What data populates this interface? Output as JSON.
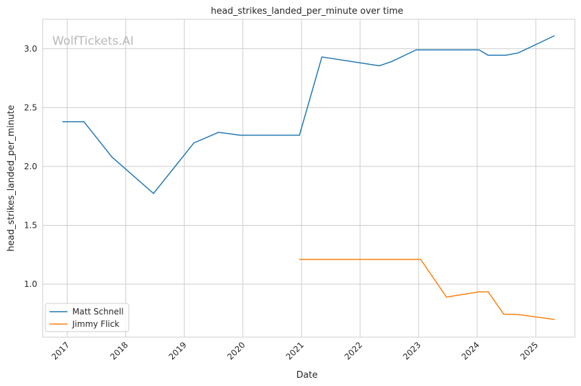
{
  "chart_data": {
    "type": "line",
    "title": "head_strikes_landed_per_minute over time",
    "xlabel": "Date",
    "ylabel": "head_strikes_landed_per_minute",
    "watermark": "WolfTickets.AI",
    "grid": true,
    "legend_position": "lower-left",
    "x_ticks": [
      "2017",
      "2018",
      "2019",
      "2020",
      "2021",
      "2022",
      "2023",
      "2024",
      "2025"
    ],
    "y_ticks": [
      "1.0",
      "1.5",
      "2.0",
      "2.5",
      "3.0"
    ],
    "xlim": [
      "2016-08-01",
      "2025-09-01"
    ],
    "ylim": [
      0.55,
      3.25
    ],
    "series": [
      {
        "name": "Matt Schnell",
        "color": "#1f77b4",
        "points": [
          [
            "2016-12-03",
            2.38
          ],
          [
            "2017-04-15",
            2.38
          ],
          [
            "2017-10-07",
            2.08
          ],
          [
            "2018-06-23",
            1.77
          ],
          [
            "2019-03-02",
            2.2
          ],
          [
            "2019-08-03",
            2.29
          ],
          [
            "2019-12-14",
            2.265
          ],
          [
            "2020-12-19",
            2.265
          ],
          [
            "2021-05-08",
            2.93
          ],
          [
            "2022-05-01",
            2.855
          ],
          [
            "2022-07-16",
            2.89
          ],
          [
            "2022-12-17",
            2.99
          ],
          [
            "2024-01-13",
            2.99
          ],
          [
            "2024-03-09",
            2.945
          ],
          [
            "2024-06-29",
            2.945
          ],
          [
            "2024-09-14",
            2.965
          ],
          [
            "2025-04-26",
            3.11
          ]
        ]
      },
      {
        "name": "Jimmy Flick",
        "color": "#ff7f0e",
        "points": [
          [
            "2020-12-19",
            1.21
          ],
          [
            "2023-01-14",
            1.21
          ],
          [
            "2023-06-24",
            0.89
          ],
          [
            "2024-01-13",
            0.935
          ],
          [
            "2024-03-09",
            0.935
          ],
          [
            "2024-06-15",
            0.745
          ],
          [
            "2024-09-14",
            0.742
          ],
          [
            "2025-04-26",
            0.7
          ]
        ]
      }
    ]
  }
}
